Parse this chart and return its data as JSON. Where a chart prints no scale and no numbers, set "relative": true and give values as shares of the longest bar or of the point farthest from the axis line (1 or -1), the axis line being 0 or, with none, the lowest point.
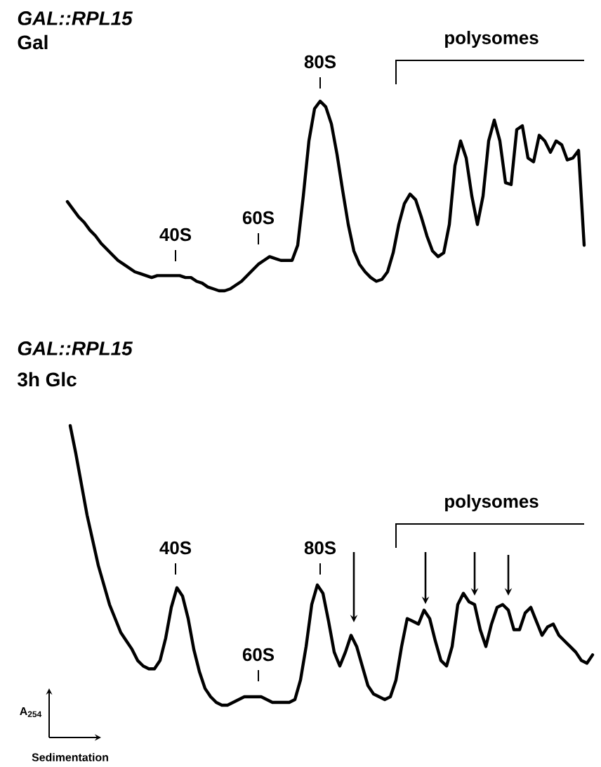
{
  "chart_data": [
    {
      "type": "line",
      "title": "GAL::RPL15",
      "subtitle": "Gal",
      "relative": true,
      "categories": [
        null,
        null,
        null,
        null,
        null,
        null,
        null,
        null,
        null,
        null,
        null,
        null,
        null,
        null,
        null,
        null,
        null,
        null,
        null,
        null,
        null,
        null,
        null,
        null,
        null,
        null,
        null,
        null,
        null,
        null,
        null,
        null,
        null,
        null,
        null,
        null,
        null,
        null,
        null,
        null,
        null,
        null,
        null,
        null,
        null,
        null,
        null,
        null,
        null,
        null,
        null,
        null,
        null,
        null,
        null,
        null,
        null,
        null,
        null,
        null,
        null,
        null,
        null,
        null,
        null,
        null,
        null,
        null,
        null,
        null,
        null,
        null,
        null,
        null,
        null,
        null,
        null,
        null,
        null,
        null,
        null,
        null,
        null,
        null,
        null,
        null,
        null,
        null,
        null,
        null,
        null,
        null,
        null
      ],
      "series": [
        {
          "color": "#000000",
          "values": [
            0.47,
            0.43,
            0.39,
            0.36,
            0.32,
            0.29,
            0.25,
            0.22,
            0.19,
            0.16,
            0.14,
            0.12,
            0.1,
            0.09,
            0.08,
            0.07,
            0.08,
            0.08,
            0.08,
            0.08,
            0.08,
            0.07,
            0.07,
            0.05,
            0.04,
            0.02,
            0.01,
            0,
            0,
            0.01,
            0.03,
            0.05,
            0.08,
            0.11,
            0.14,
            0.16,
            0.18,
            0.17,
            0.16,
            0.16,
            0.16,
            0.24,
            0.5,
            0.79,
            0.96,
            1,
            0.97,
            0.88,
            0.72,
            0.53,
            0.35,
            0.21,
            0.14,
            0.1,
            0.07,
            0.05,
            0.06,
            0.1,
            0.2,
            0.35,
            0.46,
            0.51,
            0.48,
            0.39,
            0.29,
            0.21,
            0.18,
            0.2,
            0.35,
            0.66,
            0.79,
            0.7,
            0.5,
            0.35,
            0.5,
            0.79,
            0.9,
            0.79,
            0.57,
            0.56,
            0.85,
            0.87,
            0.7,
            0.68,
            0.82,
            0.79,
            0.73,
            0.79,
            0.77,
            0.69,
            0.7,
            0.74,
            0.24
          ]
        }
      ],
      "annotations": [
        "40S",
        "60S",
        "80S",
        "polysomes"
      ]
    },
    {
      "type": "line",
      "title": "GAL::RPL15",
      "subtitle": "3h Glc",
      "relative": true,
      "categories": [
        null,
        null,
        null,
        null,
        null,
        null,
        null,
        null,
        null,
        null,
        null,
        null,
        null,
        null,
        null,
        null,
        null,
        null,
        null,
        null,
        null,
        null,
        null,
        null,
        null,
        null,
        null,
        null,
        null,
        null,
        null,
        null,
        null,
        null,
        null,
        null,
        null,
        null,
        null,
        null,
        null,
        null,
        null,
        null,
        null,
        null,
        null,
        null,
        null,
        null,
        null,
        null,
        null,
        null,
        null,
        null,
        null,
        null,
        null,
        null,
        null,
        null,
        null,
        null,
        null,
        null,
        null,
        null,
        null,
        null,
        null,
        null,
        null,
        null,
        null,
        null,
        null,
        null,
        null,
        null,
        null,
        null,
        null,
        null,
        null,
        null,
        null,
        null,
        null,
        null,
        null,
        null,
        null,
        null
      ],
      "series": [
        {
          "color": "#000000",
          "values": [
            1.0,
            0.9,
            0.79,
            0.68,
            0.59,
            0.5,
            0.43,
            0.36,
            0.31,
            0.26,
            0.23,
            0.2,
            0.16,
            0.14,
            0.13,
            0.13,
            0.16,
            0.24,
            0.35,
            0.42,
            0.39,
            0.31,
            0.2,
            0.12,
            0.06,
            0.03,
            0.01,
            0,
            0,
            0.01,
            0.02,
            0.03,
            0.03,
            0.03,
            0.03,
            0.02,
            0.01,
            0.01,
            0.01,
            0.01,
            0.02,
            0.09,
            0.21,
            0.36,
            0.43,
            0.4,
            0.3,
            0.19,
            0.14,
            0.19,
            0.25,
            0.21,
            0.14,
            0.07,
            0.04,
            0.03,
            0.02,
            0.03,
            0.09,
            0.21,
            0.31,
            0.3,
            0.29,
            0.34,
            0.31,
            0.23,
            0.16,
            0.14,
            0.21,
            0.36,
            0.4,
            0.37,
            0.36,
            0.27,
            0.21,
            0.29,
            0.35,
            0.36,
            0.34,
            0.27,
            0.27,
            0.33,
            0.35,
            0.3,
            0.25,
            0.28,
            0.29,
            0.25,
            0.23,
            0.21,
            0.19,
            0.16,
            0.15,
            0.18
          ]
        }
      ],
      "annotations": [
        "40S",
        "60S",
        "80S",
        "polysomes",
        "A$_{254}$",
        "Sedimentation"
      ]
    }
  ]
}
